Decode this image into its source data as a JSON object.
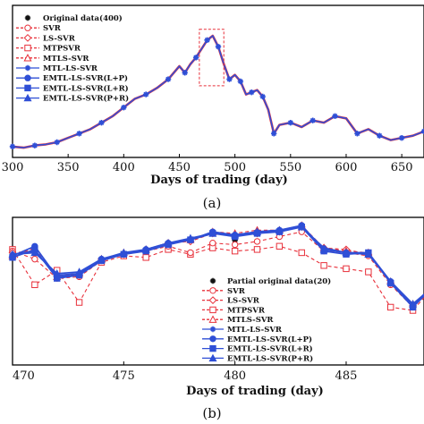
{
  "colors": {
    "red": "#e8303a",
    "blue": "#2f4fd6",
    "dark": "#111111"
  },
  "chart_data": [
    {
      "type": "line",
      "panel_label": "(a)",
      "xlabel": "Days of trading (day)",
      "xlim": [
        300,
        670
      ],
      "ylim": [
        0,
        7
      ],
      "xticks": [
        "300",
        "350",
        "400",
        "450",
        "500",
        "550",
        "600",
        "650"
      ],
      "legend_entries": [
        "Original data(400)",
        "SVR",
        "LS-SVR",
        "MTPSVR",
        "MTLS-SVR",
        "MTL-LS-SVR",
        "EMTL-LS-SVR(L+P)",
        "EMTL-LS-SVR(L+R)",
        "EMTL-LS-SVR(P+R)"
      ],
      "legend_position": "top-left",
      "highlight_box": {
        "x": [
          468,
          490
        ],
        "y": [
          3.3,
          5.9
        ]
      },
      "series": [
        {
          "name": "Original data(400)",
          "x": [
            300,
            310,
            320,
            330,
            340,
            350,
            360,
            370,
            380,
            390,
            400,
            410,
            420,
            430,
            440,
            450,
            455,
            460,
            465,
            470,
            475,
            480,
            485,
            490,
            495,
            500,
            505,
            510,
            515,
            520,
            525,
            530,
            535,
            540,
            550,
            560,
            570,
            580,
            590,
            600,
            610,
            620,
            630,
            640,
            650,
            660,
            670
          ],
          "y": [
            0.5,
            0.45,
            0.55,
            0.6,
            0.7,
            0.9,
            1.1,
            1.3,
            1.6,
            1.9,
            2.3,
            2.7,
            2.9,
            3.2,
            3.6,
            4.2,
            3.9,
            4.3,
            4.6,
            5.0,
            5.4,
            5.6,
            5.1,
            4.3,
            3.6,
            3.8,
            3.5,
            2.9,
            3.0,
            3.1,
            2.8,
            2.2,
            1.1,
            1.5,
            1.6,
            1.4,
            1.7,
            1.6,
            1.9,
            1.8,
            1.1,
            1.3,
            1.0,
            0.8,
            0.9,
            1.0,
            1.2
          ]
        }
      ]
    },
    {
      "type": "line",
      "panel_label": "(b)",
      "xlabel": "Days of trading (day)",
      "xlim": [
        470,
        488.5
      ],
      "ylim": [
        0,
        4.6
      ],
      "xticks": [
        "470",
        "475",
        "480",
        "485"
      ],
      "legend_entries": [
        "Partial original data(20)",
        "SVR",
        "LS-SVR",
        "MTPSVR",
        "MTLS-SVR",
        "MTL-LS-SVR",
        "EMTL-LS-SVR(L+P)",
        "EMTL-LS-SVR(L+R)",
        "EMTL-LS-SVR(P+R)"
      ],
      "legend_position": "lower-center",
      "series": [
        {
          "name": "Partial original data(20)",
          "color": "dark",
          "dash": "",
          "marker": "star",
          "x": [
            477,
            480
          ],
          "y": [
            3.8,
            3.88
          ]
        },
        {
          "name": "MTPSVR",
          "color": "red",
          "dash": "4,3",
          "marker": "square-open",
          "x": [
            470,
            471,
            472,
            473,
            474,
            475,
            476,
            477,
            478,
            479,
            480,
            481,
            482,
            483,
            484,
            485,
            486,
            487,
            488,
            488.5
          ],
          "y": [
            3.6,
            2.5,
            2.95,
            1.95,
            3.2,
            3.4,
            3.35,
            3.6,
            3.45,
            3.65,
            3.55,
            3.6,
            3.7,
            3.5,
            3.1,
            3.0,
            2.9,
            1.8,
            1.7,
            2.1
          ]
        },
        {
          "name": "SVR",
          "color": "red",
          "dash": "4,3",
          "marker": "circle-open",
          "x": [
            470,
            471,
            472,
            473,
            474,
            475,
            476,
            477,
            478,
            479,
            480,
            481,
            482,
            483,
            484,
            485,
            486,
            487,
            488,
            488.5
          ],
          "y": [
            3.55,
            3.3,
            2.7,
            2.75,
            3.25,
            3.45,
            3.55,
            3.7,
            3.5,
            3.8,
            3.75,
            3.85,
            4.0,
            4.15,
            3.55,
            3.5,
            3.4,
            2.5,
            1.8,
            2.15
          ]
        },
        {
          "name": "LS-SVR",
          "color": "red",
          "dash": "4,3",
          "marker": "diamond-open",
          "x": [
            470,
            471,
            472,
            473,
            474,
            475,
            476,
            477,
            478,
            479,
            480,
            481,
            482,
            483,
            484,
            485,
            486,
            487,
            488,
            488.5
          ],
          "y": [
            3.5,
            3.55,
            2.8,
            2.8,
            3.3,
            3.45,
            3.6,
            3.8,
            3.85,
            4.1,
            4.05,
            4.1,
            4.15,
            4.3,
            3.65,
            3.6,
            3.45,
            2.55,
            1.85,
            2.2
          ]
        },
        {
          "name": "MTLS-SVR",
          "color": "red",
          "dash": "4,3",
          "marker": "triangle-open",
          "x": [
            470,
            471,
            472,
            473,
            474,
            475,
            476,
            477,
            478,
            479,
            480,
            481,
            482,
            483,
            484,
            485,
            486,
            487,
            488,
            488.5
          ],
          "y": [
            3.4,
            3.65,
            2.75,
            2.85,
            3.3,
            3.5,
            3.6,
            3.8,
            3.9,
            4.15,
            4.1,
            4.2,
            4.2,
            4.35,
            3.65,
            3.55,
            3.5,
            2.6,
            1.9,
            2.2
          ]
        },
        {
          "name": "MTL-LS-SVR",
          "color": "blue",
          "dash": "",
          "marker": "star",
          "x": [
            470,
            471,
            472,
            473,
            474,
            475,
            476,
            477,
            478,
            479,
            480,
            481,
            482,
            483,
            484,
            485,
            486,
            487,
            488,
            488.5
          ],
          "y": [
            3.45,
            3.55,
            2.8,
            2.85,
            3.3,
            3.45,
            3.6,
            3.8,
            3.9,
            4.1,
            4.05,
            4.15,
            4.2,
            4.3,
            3.65,
            3.5,
            3.45,
            2.6,
            1.85,
            2.2
          ]
        },
        {
          "name": "EMTL-LS-SVR(L+P)",
          "color": "blue",
          "dash": "",
          "marker": "circle",
          "x": [
            470,
            471,
            472,
            473,
            474,
            475,
            476,
            477,
            478,
            479,
            480,
            481,
            482,
            483,
            484,
            485,
            486,
            487,
            488,
            488.5
          ],
          "y": [
            3.4,
            3.7,
            2.75,
            2.8,
            3.3,
            3.45,
            3.6,
            3.8,
            3.9,
            4.15,
            4.05,
            4.1,
            4.2,
            4.35,
            3.6,
            3.5,
            3.5,
            2.6,
            1.85,
            2.2
          ]
        },
        {
          "name": "EMTL-LS-SVR(L+R)",
          "color": "blue",
          "dash": "",
          "marker": "square",
          "x": [
            470,
            471,
            472,
            473,
            474,
            475,
            476,
            477,
            478,
            479,
            480,
            481,
            482,
            483,
            484,
            485,
            486,
            487,
            488,
            488.5
          ],
          "y": [
            3.35,
            3.6,
            2.7,
            2.8,
            3.25,
            3.45,
            3.55,
            3.75,
            3.9,
            4.1,
            4.0,
            4.1,
            4.15,
            4.3,
            3.55,
            3.45,
            3.5,
            2.55,
            1.8,
            2.15
          ]
        },
        {
          "name": "EMTL-LS-SVR(P+R)",
          "color": "blue",
          "dash": "",
          "marker": "triangle",
          "x": [
            470,
            471,
            472,
            473,
            474,
            475,
            476,
            477,
            478,
            479,
            480,
            481,
            482,
            483,
            484,
            485,
            486,
            487,
            488,
            488.5
          ],
          "y": [
            3.45,
            3.5,
            2.85,
            2.9,
            3.3,
            3.5,
            3.6,
            3.8,
            3.95,
            4.1,
            4.05,
            4.15,
            4.2,
            4.3,
            3.6,
            3.5,
            3.45,
            2.6,
            1.9,
            2.2
          ]
        }
      ]
    }
  ]
}
